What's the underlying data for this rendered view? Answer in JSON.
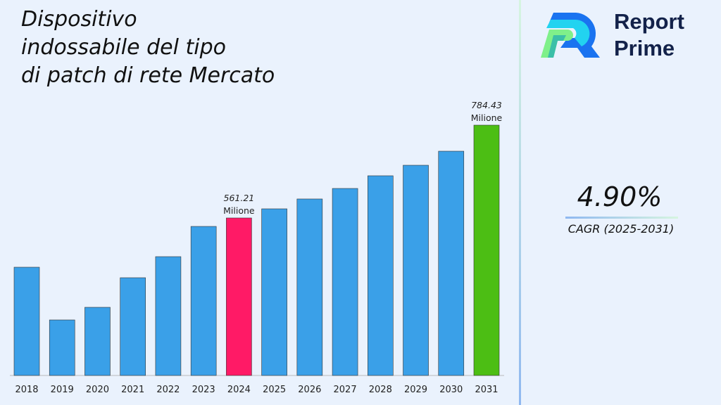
{
  "chart_data": {
    "type": "bar",
    "title": "Dispositivo\nindossabile del tipo\ndi patch di rete Mercato",
    "categories": [
      "2018",
      "2019",
      "2020",
      "2021",
      "2022",
      "2023",
      "2024",
      "2025",
      "2026",
      "2027",
      "2028",
      "2029",
      "2030",
      "2031"
    ],
    "values": [
      442.8,
      316.0,
      346.4,
      417.5,
      468.2,
      540.9,
      561.21,
      583.2,
      606.9,
      632.2,
      662.7,
      688.0,
      721.8,
      784.43
    ],
    "data_labels": {
      "2024": [
        "561.21",
        "Milione"
      ],
      "2031": [
        "784.43",
        "Milione"
      ]
    },
    "colors": {
      "default": "#3aa0e8",
      "2024": "#ff1a66",
      "2031": "#4cbe14"
    },
    "xlabel": "",
    "ylabel": "",
    "grid": false
  },
  "brand": {
    "line1": "Report",
    "line2": "Prime"
  },
  "cagr": {
    "value": "4.90%",
    "label": "CAGR (2025-2031)"
  }
}
